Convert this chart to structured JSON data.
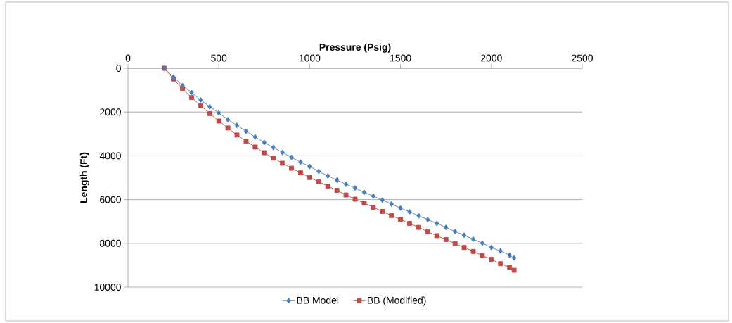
{
  "chart_data": {
    "type": "line",
    "xlabel": "Pressure (Psig)",
    "ylabel": "Length (Ft)",
    "x": [
      200,
      250,
      300,
      350,
      400,
      450,
      500,
      550,
      600,
      650,
      700,
      750,
      800,
      850,
      900,
      950,
      1000,
      1050,
      1100,
      1150,
      1200,
      1250,
      1300,
      1350,
      1400,
      1450,
      1500,
      1550,
      1600,
      1650,
      1700,
      1750,
      1800,
      1850,
      1900,
      1950,
      2000,
      2050,
      2100,
      2125
    ],
    "series": [
      {
        "name": "BB Model",
        "color": "#4a7ebb",
        "marker": "diamond",
        "values": [
          0,
          400,
          790,
          1110,
          1450,
          1760,
          2040,
          2350,
          2610,
          2880,
          3140,
          3390,
          3620,
          3850,
          4070,
          4290,
          4490,
          4710,
          4920,
          5110,
          5300,
          5470,
          5670,
          5840,
          6020,
          6200,
          6390,
          6560,
          6740,
          6920,
          7090,
          7270,
          7460,
          7630,
          7810,
          7990,
          8190,
          8350,
          8540,
          8670
        ]
      },
      {
        "name": "BB (Modified)",
        "color": "#be4b48",
        "marker": "square",
        "values": [
          0,
          490,
          930,
          1340,
          1710,
          2070,
          2410,
          2730,
          3050,
          3330,
          3600,
          3860,
          4110,
          4340,
          4570,
          4780,
          4990,
          5190,
          5390,
          5580,
          5790,
          5980,
          6160,
          6350,
          6540,
          6730,
          6910,
          7090,
          7270,
          7470,
          7650,
          7830,
          8010,
          8190,
          8370,
          8560,
          8730,
          8930,
          9100,
          9230
        ]
      }
    ],
    "xlim": [
      0,
      2500
    ],
    "xticks": [
      0,
      500,
      1000,
      1500,
      2000,
      2500
    ],
    "ylim": [
      10000,
      0
    ],
    "yticks": [
      0,
      2000,
      4000,
      6000,
      8000,
      10000
    ],
    "grid": "y",
    "legend": "bottom",
    "line_style": "solid"
  }
}
